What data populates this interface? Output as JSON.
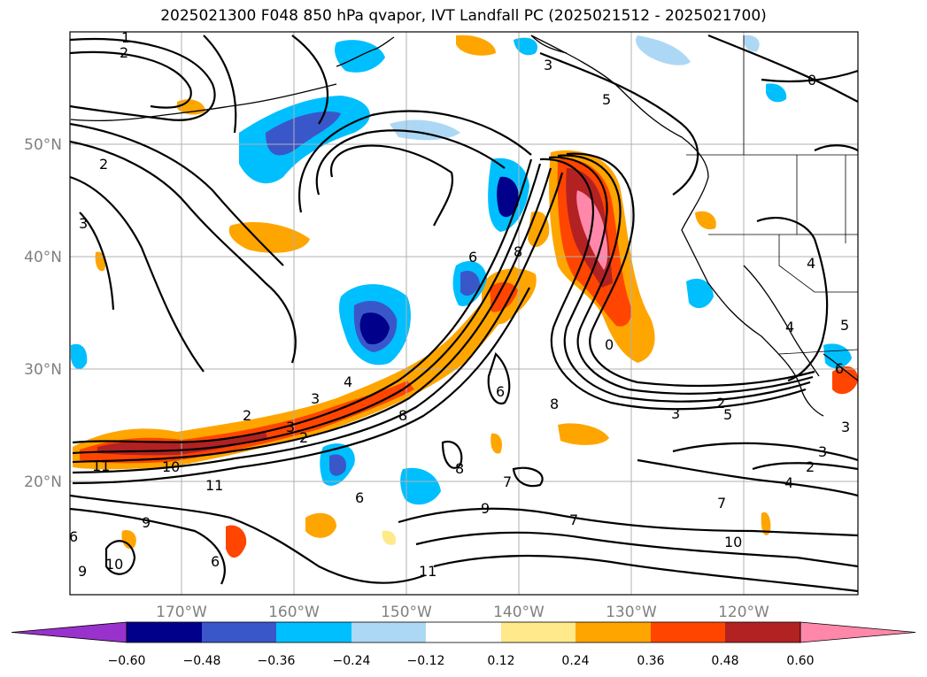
{
  "title": "2025021300 F048 850 hPa qvapor, IVT Landfall PC (2025021512 - 2025021700)",
  "latitude_labels": [
    "50°N",
    "40°N",
    "30°N",
    "20°N"
  ],
  "longitude_labels": [
    "170°W",
    "160°W",
    "150°W",
    "140°W",
    "130°W",
    "120°W"
  ],
  "colorbar": {
    "tick_labels": [
      "−0.60",
      "−0.48",
      "−0.36",
      "−0.24",
      "−0.12",
      "0.12",
      "0.24",
      "0.36",
      "0.48",
      "0.60"
    ],
    "colors": [
      "#9932cc",
      "#00008b",
      "#3a57c9",
      "#00bfff",
      "#add8f5",
      "#ffffff",
      "#ffe98a",
      "#ffa500",
      "#ff4500",
      "#b22222",
      "#ff88aa"
    ]
  },
  "contour_labels": [
    "1",
    "2",
    "3",
    "0",
    "2",
    "3",
    "6",
    "8",
    "4",
    "11",
    "10",
    "11",
    "9",
    "6",
    "10",
    "9",
    "6",
    "2",
    "3",
    "4",
    "3",
    "2",
    "8",
    "8",
    "6",
    "7",
    "9",
    "7",
    "11",
    "7",
    "10",
    "4",
    "2",
    "3",
    "2",
    "3",
    "5",
    "0",
    "4",
    "5",
    "6",
    "3",
    "8",
    "6",
    "5"
  ]
}
